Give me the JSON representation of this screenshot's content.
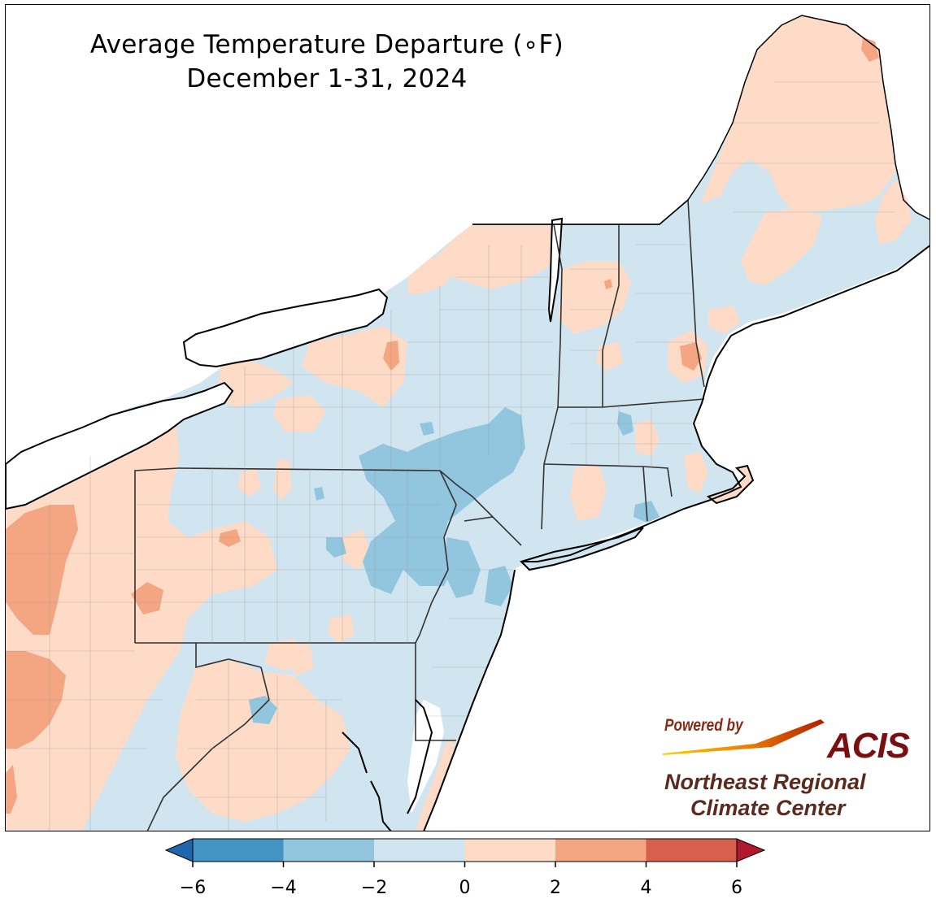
{
  "title": {
    "line1": "Average Temperature Departure (∘F)",
    "line2": "December 1-31, 2024"
  },
  "legend": {
    "ticks": [
      "−6",
      "−4",
      "−2",
      "0",
      "2",
      "4",
      "6"
    ],
    "bins": [
      {
        "range": "-6 to -4",
        "color": "#4393c3"
      },
      {
        "range": "-4 to -2",
        "color": "#92c5de"
      },
      {
        "range": "-2 to 0",
        "color": "#d1e5f0"
      },
      {
        "range": "0 to 2",
        "color": "#fddbc7"
      },
      {
        "range": "2 to 4",
        "color": "#f4a582"
      },
      {
        "range": "4 to 6",
        "color": "#d6604d"
      }
    ],
    "under_color": "#2166ac",
    "over_color": "#b2182b"
  },
  "logo": {
    "powered_by": "Powered by",
    "brand": "ACIS",
    "org_line1": "Northeast Regional",
    "org_line2": "Climate Center"
  },
  "map": {
    "region": "Northeastern United States",
    "base_fill": "#d1e5f0",
    "coast_color": "#000000"
  }
}
